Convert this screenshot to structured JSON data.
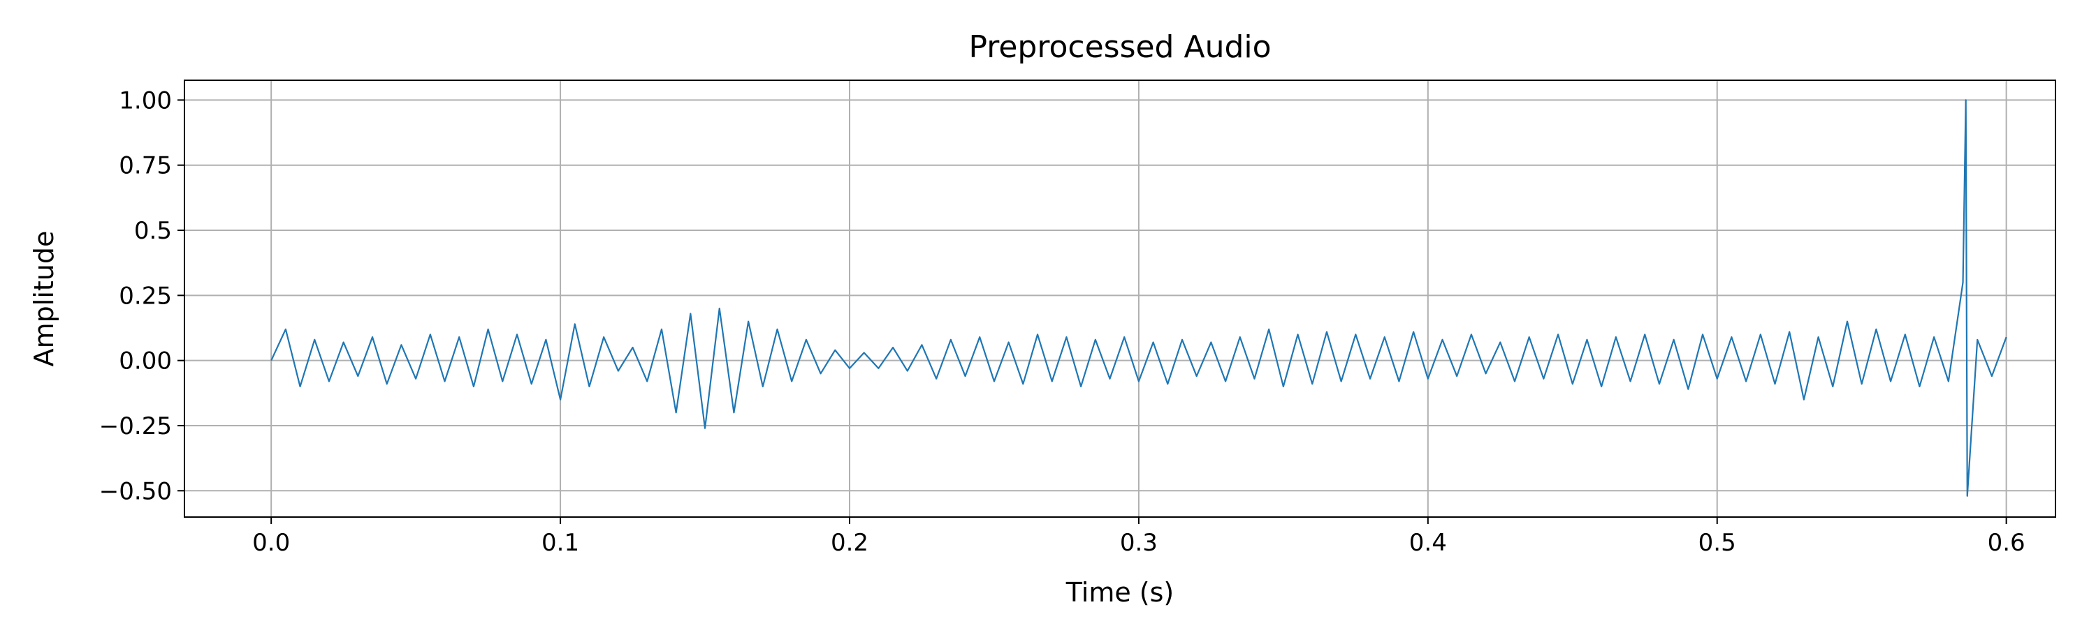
{
  "chart_data": {
    "type": "line",
    "title": "Preprocessed Audio",
    "xlabel": "Time (s)",
    "ylabel": "Amplitude",
    "x": [
      0,
      0.005,
      0.01,
      0.015,
      0.02,
      0.025,
      0.03,
      0.035,
      0.04,
      0.045,
      0.05,
      0.055,
      0.06,
      0.065,
      0.07,
      0.075,
      0.08,
      0.085,
      0.09,
      0.095,
      0.1,
      0.105,
      0.11,
      0.115,
      0.12,
      0.125,
      0.13,
      0.135,
      0.14,
      0.145,
      0.15,
      0.155,
      0.16,
      0.165,
      0.17,
      0.175,
      0.18,
      0.185,
      0.19,
      0.195,
      0.2,
      0.205,
      0.21,
      0.215,
      0.22,
      0.225,
      0.23,
      0.235,
      0.24,
      0.245,
      0.25,
      0.255,
      0.26,
      0.265,
      0.27,
      0.275,
      0.28,
      0.285,
      0.29,
      0.295,
      0.3,
      0.305,
      0.31,
      0.315,
      0.32,
      0.325,
      0.33,
      0.335,
      0.34,
      0.345,
      0.35,
      0.355,
      0.36,
      0.365,
      0.37,
      0.375,
      0.38,
      0.385,
      0.39,
      0.395,
      0.4,
      0.405,
      0.41,
      0.415,
      0.42,
      0.425,
      0.43,
      0.435,
      0.44,
      0.445,
      0.45,
      0.455,
      0.46,
      0.465,
      0.47,
      0.475,
      0.48,
      0.485,
      0.49,
      0.495,
      0.5,
      0.505,
      0.51,
      0.515,
      0.52,
      0.525,
      0.53,
      0.535,
      0.54,
      0.545,
      0.55,
      0.555,
      0.56,
      0.565,
      0.57,
      0.575,
      0.58,
      0.585,
      0.586,
      0.5865,
      0.59,
      0.595,
      0.6
    ],
    "values": [
      0,
      0.12,
      -0.1,
      0.08,
      -0.08,
      0.07,
      -0.06,
      0.09,
      -0.09,
      0.06,
      -0.07,
      0.1,
      -0.08,
      0.09,
      -0.1,
      0.12,
      -0.08,
      0.1,
      -0.09,
      0.08,
      -0.15,
      0.14,
      -0.1,
      0.09,
      -0.04,
      0.05,
      -0.08,
      0.12,
      -0.2,
      0.18,
      -0.26,
      0.2,
      -0.2,
      0.15,
      -0.1,
      0.12,
      -0.08,
      0.08,
      -0.05,
      0.04,
      -0.03,
      0.03,
      -0.03,
      0.05,
      -0.04,
      0.06,
      -0.07,
      0.08,
      -0.06,
      0.09,
      -0.08,
      0.07,
      -0.09,
      0.1,
      -0.08,
      0.09,
      -0.1,
      0.08,
      -0.07,
      0.09,
      -0.08,
      0.07,
      -0.09,
      0.08,
      -0.06,
      0.07,
      -0.08,
      0.09,
      -0.07,
      0.12,
      -0.1,
      0.1,
      -0.09,
      0.11,
      -0.08,
      0.1,
      -0.07,
      0.09,
      -0.08,
      0.11,
      -0.07,
      0.08,
      -0.06,
      0.1,
      -0.05,
      0.07,
      -0.08,
      0.09,
      -0.07,
      0.1,
      -0.09,
      0.08,
      -0.1,
      0.09,
      -0.08,
      0.1,
      -0.09,
      0.08,
      -0.11,
      0.1,
      -0.07,
      0.09,
      -0.08,
      0.1,
      -0.09,
      0.11,
      -0.15,
      0.09,
      -0.1,
      0.15,
      -0.09,
      0.12,
      -0.08,
      0.1,
      -0.1,
      0.09,
      -0.08,
      0.3,
      1.0,
      -0.52,
      0.08,
      -0.06,
      0.09
    ],
    "color": "#1f77b4",
    "xlim": [
      -0.03,
      0.617
    ],
    "ylim": [
      -0.601,
      1.076
    ],
    "xticks": [
      {
        "value": 0,
        "label": "0.0"
      },
      0.1,
      0.2,
      0.3,
      0.4,
      0.5,
      0.6
    ],
    "yticks": [
      {
        "value": -0.5,
        "label": "−0.50"
      },
      {
        "value": -0.25,
        "label": "−0.25"
      },
      {
        "value": 0,
        "label": "0.00"
      },
      0.25,
      0.5,
      0.75,
      {
        "value": 1,
        "label": "1.00"
      }
    ],
    "grid": true
  }
}
